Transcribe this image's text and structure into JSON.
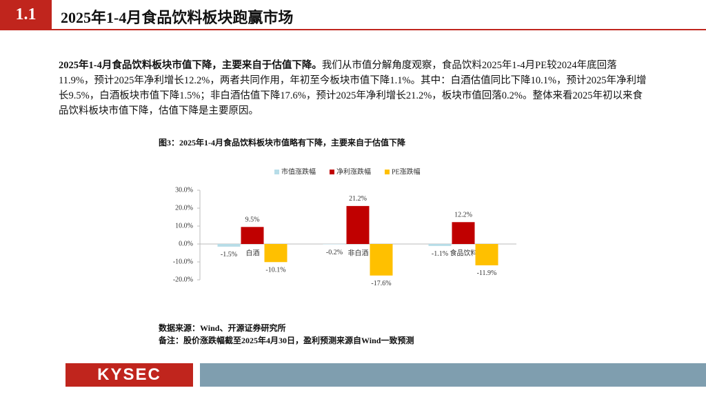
{
  "header": {
    "number": "1.1",
    "title": "2025年1-4月食品饮料板块跑赢市场"
  },
  "body": {
    "lead": "2025年1-4月食品饮料板块市值下降，主要来自于估值下降。",
    "text": "我们从市值分解角度观察，食品饮料2025年1-4月PE较2024年底回落11.9%，预计2025年净利增长12.2%，两者共同作用，年初至今板块市值下降1.1%。其中：白酒估值同比下降10.1%，预计2025年净利增长9.5%，白酒板块市值下降1.5%；非白酒估值下降17.6%，预计2025年净利增长21.2%，板块市值回落0.2%。整体来看2025年初以来食品饮料板块市值下降，估值下降是主要原因。"
  },
  "chart_data": {
    "type": "bar",
    "title": "图3：2025年1-4月食品饮料板块市值略有下降，主要来自于估值下降",
    "categories": [
      "白酒",
      "非白酒",
      "食品饮料"
    ],
    "series": [
      {
        "name": "市值涨跌幅",
        "color": "#b7dde8",
        "values": [
          -1.5,
          -0.2,
          -1.1
        ],
        "value_labels": [
          "-1.5%",
          "-0.2%",
          "-1.1%"
        ]
      },
      {
        "name": "净利涨跌幅",
        "color": "#c00000",
        "values": [
          9.5,
          21.2,
          12.2
        ],
        "value_labels": [
          "9.5%",
          "21.2%",
          "12.2%"
        ]
      },
      {
        "name": "PE涨跌幅",
        "color": "#ffc000",
        "values": [
          -10.1,
          -17.6,
          -11.9
        ],
        "value_labels": [
          "-10.1%",
          "-17.6%",
          "-11.9%"
        ]
      }
    ],
    "ylim": [
      -20,
      30
    ],
    "yticks": [
      {
        "value": -20,
        "label": "-20.0%"
      },
      {
        "value": -10,
        "label": "-10.0%"
      },
      {
        "value": 0,
        "label": "0.0%"
      },
      {
        "value": 10,
        "label": "10.0%"
      },
      {
        "value": 20,
        "label": "20.0%"
      },
      {
        "value": 30,
        "label": "30.0%"
      }
    ],
    "legend": "top"
  },
  "notes": {
    "source": "数据来源：Wind、开源证券研究所",
    "remark": "备注：股价涨跌幅截至2025年4月30日，盈利预测来源自Wind一致预测"
  },
  "footer": {
    "logo": "KYSEC"
  }
}
